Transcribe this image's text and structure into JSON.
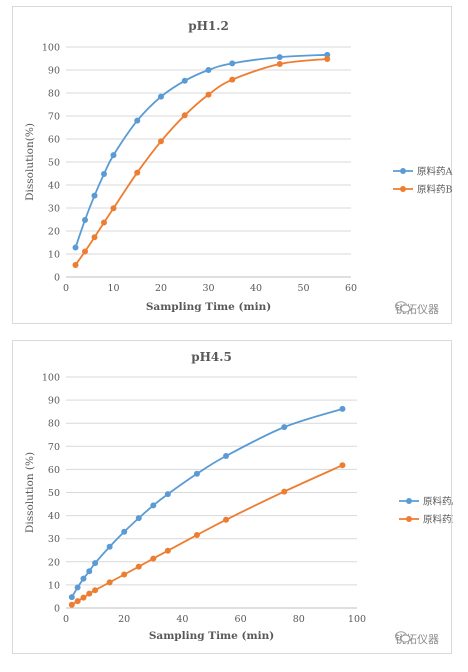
{
  "colors": {
    "series_a": "#5B9BD5",
    "series_b": "#ED7D31",
    "grid": "#d9d9d9",
    "text": "#595959"
  },
  "watermark": "锐拓仪器",
  "chart_data": [
    {
      "type": "line",
      "title": "pH1.2",
      "xlabel": "Sampling Time (min)",
      "ylabel": "Dissolution(%)",
      "xlim": [
        0,
        60
      ],
      "ylim": [
        0,
        100
      ],
      "xticks": [
        0,
        10,
        20,
        30,
        40,
        50,
        60
      ],
      "yticks": [
        0,
        10,
        20,
        30,
        40,
        50,
        60,
        70,
        80,
        90,
        100
      ],
      "grid": true,
      "legend": "right",
      "series": [
        {
          "name": "原料药A",
          "color": "#5B9BD5",
          "x": [
            2,
            4,
            6,
            8,
            10,
            15,
            20,
            25,
            30,
            35,
            45,
            55
          ],
          "y": [
            12.8,
            24.8,
            35.4,
            44.8,
            53.0,
            68.0,
            78.4,
            85.3,
            90.0,
            92.9,
            95.6,
            96.6
          ]
        },
        {
          "name": "原料药B",
          "color": "#ED7D31",
          "x": [
            2,
            4,
            6,
            8,
            10,
            15,
            20,
            25,
            30,
            35,
            45,
            55
          ],
          "y": [
            5.2,
            11.1,
            17.3,
            23.7,
            29.9,
            45.4,
            59.0,
            70.3,
            79.3,
            85.8,
            92.6,
            94.8
          ]
        }
      ]
    },
    {
      "type": "line",
      "title": "pH4.5",
      "xlabel": "Sampling Time (min)",
      "ylabel": "Dissolution (%)",
      "xlim": [
        0,
        100
      ],
      "ylim": [
        0,
        100
      ],
      "xticks": [
        0,
        20,
        40,
        60,
        80,
        100
      ],
      "yticks": [
        0,
        10,
        20,
        30,
        40,
        50,
        60,
        70,
        80,
        90,
        100
      ],
      "grid": true,
      "legend": "right",
      "series": [
        {
          "name": "原料药A",
          "color": "#5B9BD5",
          "x": [
            2,
            4,
            6,
            8,
            10,
            15,
            20,
            25,
            30,
            35,
            45,
            55,
            75,
            95
          ],
          "y": [
            4.7,
            8.9,
            12.7,
            15.9,
            19.4,
            26.5,
            33.0,
            38.9,
            44.4,
            49.3,
            58.1,
            65.8,
            78.3,
            86.2
          ]
        },
        {
          "name": "原料药B",
          "color": "#ED7D31",
          "x": [
            2,
            4,
            6,
            8,
            10,
            15,
            20,
            25,
            30,
            35,
            45,
            55,
            75,
            95
          ],
          "y": [
            1.4,
            3.0,
            4.5,
            6.2,
            7.7,
            11.1,
            14.5,
            17.9,
            21.4,
            24.8,
            31.6,
            38.2,
            50.4,
            61.8
          ]
        }
      ]
    }
  ]
}
